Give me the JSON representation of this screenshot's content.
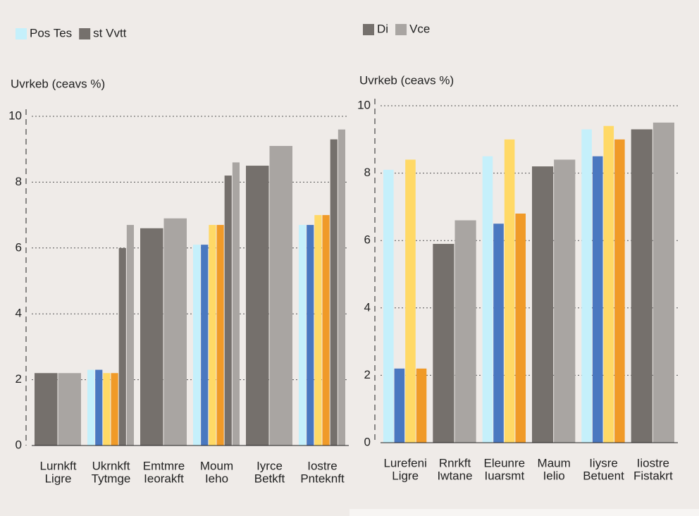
{
  "chart_data": [
    {
      "type": "bar",
      "y_label": "Uvrkeb (ceavs %)",
      "categories": [
        [
          "Lurnkft",
          "Ligre"
        ],
        [
          "Ukrnkft",
          "Tytmge"
        ],
        [
          "Emtmre",
          "Ieorakft"
        ],
        [
          "Moum",
          "Ieho"
        ],
        [
          "Iyrce",
          "Betkft"
        ],
        [
          "Iostre",
          "Pnteknft"
        ]
      ],
      "series": [
        {
          "name": "Pos Tes",
          "color": "#c5f0fb",
          "values": [
            null,
            2.3,
            null,
            6.1,
            null,
            6.7
          ]
        },
        {
          "color": "#4a78c0",
          "values": [
            null,
            2.3,
            null,
            6.1,
            null,
            6.7
          ]
        },
        {
          "color": "#ffd966",
          "values": [
            null,
            2.2,
            null,
            6.7,
            null,
            7.0
          ]
        },
        {
          "color": "#f09a28",
          "values": [
            null,
            2.2,
            null,
            6.7,
            null,
            7.0
          ]
        },
        {
          "name": "st Vvtt",
          "color": "#75706c",
          "values": [
            2.2,
            6.0,
            6.6,
            8.2,
            8.5,
            9.3
          ]
        },
        {
          "color": "#a9a5a2",
          "values": [
            2.2,
            6.7,
            6.9,
            8.6,
            9.1,
            9.6
          ]
        }
      ],
      "ylim": [
        0,
        10
      ],
      "yticks": [
        0,
        2,
        4,
        6,
        8,
        10
      ],
      "grid": true
    },
    {
      "type": "bar",
      "y_label": "Uvrkeb (ceavs %)",
      "categories": [
        [
          "Lurefeni",
          "Ligre"
        ],
        [
          "Rnrkft",
          "Iwtane"
        ],
        [
          "Eleunre",
          "Iuarsmt"
        ],
        [
          "Maum",
          "Ielio"
        ],
        [
          "Iiysre",
          "Betuent"
        ],
        [
          "Iiostre",
          "Fistakrt"
        ]
      ],
      "series": [
        {
          "color": "#c5f0fb",
          "values": [
            8.1,
            null,
            8.5,
            null,
            9.3,
            null
          ]
        },
        {
          "color": "#4a78c0",
          "values": [
            2.2,
            null,
            6.5,
            null,
            8.5,
            null
          ]
        },
        {
          "color": "#ffd966",
          "values": [
            8.4,
            null,
            9.0,
            null,
            9.4,
            null
          ]
        },
        {
          "color": "#f09a28",
          "values": [
            2.2,
            null,
            6.8,
            null,
            9.0,
            null
          ]
        },
        {
          "name": "Di",
          "color": "#75706c",
          "values": [
            null,
            5.9,
            null,
            8.2,
            null,
            9.3
          ]
        },
        {
          "name": "Vce",
          "color": "#a9a5a2",
          "values": [
            null,
            6.6,
            null,
            8.4,
            null,
            9.5
          ]
        }
      ],
      "ylim": [
        0,
        10
      ],
      "yticks": [
        0,
        2,
        4,
        6,
        8,
        10
      ],
      "grid": true
    }
  ]
}
